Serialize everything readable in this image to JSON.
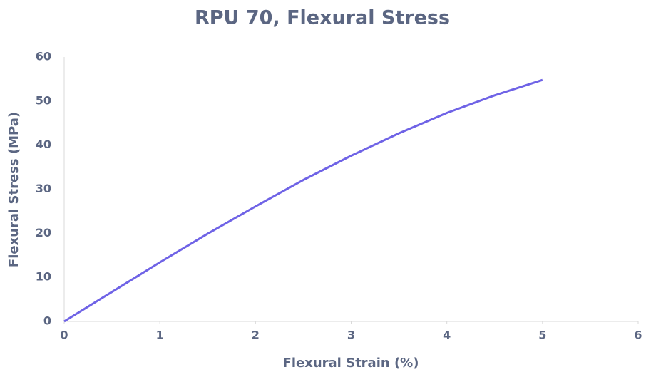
{
  "chart_data": {
    "type": "line",
    "title": "RPU 70, Flexural Stress",
    "x_label": "Flexural Strain (%)",
    "y_label": "Flexural Stress (MPa)",
    "x": [
      0,
      0.5,
      1,
      1.5,
      2,
      2.5,
      3,
      3.5,
      4,
      4.5,
      5
    ],
    "series": [
      {
        "name": "RPU 70",
        "color": "#6f63e6",
        "values": [
          0,
          6.7,
          13.4,
          19.9,
          26.1,
          32.1,
          37.6,
          42.7,
          47.3,
          51.3,
          54.8
        ]
      }
    ],
    "xlim": [
      0,
      6
    ],
    "xticks": [
      0,
      1,
      2,
      3,
      4,
      5,
      6
    ],
    "ylim": [
      0,
      60
    ],
    "yticks": [
      0,
      10,
      20,
      30,
      40,
      50,
      60
    ],
    "grid": false
  }
}
